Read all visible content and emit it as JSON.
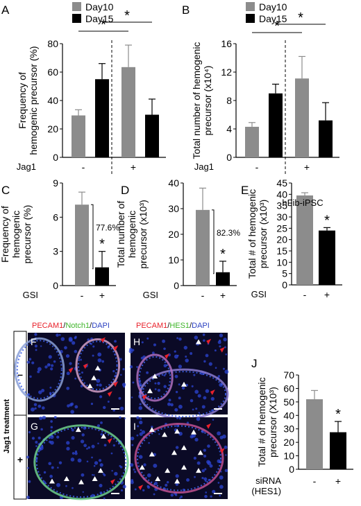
{
  "colors": {
    "gray": "#8c8c8c",
    "black": "#000000",
    "red": "#e8202a",
    "green": "#5cc93c",
    "blue": "#2e44c8",
    "bg_tissue": "#0a0a28"
  },
  "panels": {
    "A": "A",
    "B": "B",
    "C": "C",
    "D": "D",
    "E": "E",
    "F": "F",
    "G": "G",
    "H": "H",
    "I": "I",
    "J": "J"
  },
  "micro": {
    "stain_left": [
      {
        "text": "PECAM1",
        "color": "#e8202a"
      },
      {
        "text": "/",
        "color": "#000000"
      },
      {
        "text": "Notch1",
        "color": "#3fb52a"
      },
      {
        "text": "/",
        "color": "#000000"
      },
      {
        "text": "DAPI",
        "color": "#2a3fc0"
      }
    ],
    "stain_right": [
      {
        "text": "PECAM1",
        "color": "#e8202a"
      },
      {
        "text": "/",
        "color": "#000000"
      },
      {
        "text": "HES1",
        "color": "#3fb52a"
      },
      {
        "text": "/",
        "color": "#000000"
      },
      {
        "text": "DAPI",
        "color": "#2a3fc0"
      }
    ],
    "side_label": "Jag1 treatment",
    "row_minus": "–",
    "row_plus": "+"
  },
  "chart_data": [
    {
      "panel": "A",
      "type": "bar",
      "ylabel": "Frequency of\nhemogenic precursor (%)",
      "ylim": [
        0,
        80
      ],
      "yticks": [
        0,
        20,
        40,
        60,
        80
      ],
      "legend": [
        "Day10",
        "Day15"
      ],
      "series": [
        {
          "name": "Day10",
          "color": "#8c8c8c"
        },
        {
          "name": "Day15",
          "color": "#000000"
        }
      ],
      "bars": [
        {
          "value": 29.5,
          "err": 4,
          "color": "#8c8c8c"
        },
        {
          "value": 55,
          "err": 11,
          "color": "#000000"
        },
        {
          "value": 63.5,
          "err": 15.5,
          "color": "#8c8c8c"
        },
        {
          "value": 30,
          "err": 11,
          "color": "#000000"
        }
      ],
      "treatment_label": "Jag1",
      "treatment_levels": [
        "-",
        "+"
      ],
      "significance": [
        {
          "from": 0,
          "to": 2,
          "label": "*"
        },
        {
          "from": 1,
          "to": 3,
          "label": "*"
        }
      ]
    },
    {
      "panel": "B",
      "type": "bar",
      "ylabel": "Total number of hemogenic\nprecursor (x10⁴)",
      "ylim": [
        0,
        16
      ],
      "yticks": [
        0,
        4,
        8,
        12,
        16
      ],
      "legend": [
        "Day10",
        "Day15"
      ],
      "series": [
        {
          "name": "Day10",
          "color": "#8c8c8c"
        },
        {
          "name": "Day15",
          "color": "#000000"
        }
      ],
      "bars": [
        {
          "value": 4.3,
          "err": 0.6,
          "color": "#8c8c8c"
        },
        {
          "value": 9.0,
          "err": 1.3,
          "color": "#000000"
        },
        {
          "value": 11.1,
          "err": 3.1,
          "color": "#8c8c8c"
        },
        {
          "value": 5.2,
          "err": 2.5,
          "color": "#000000"
        }
      ],
      "treatment_label": "Jag1",
      "treatment_levels": [
        "-",
        "+"
      ],
      "significance": [
        {
          "from": 0,
          "to": 2,
          "label": "*"
        },
        {
          "from": 1,
          "to": 3,
          "label": "*"
        }
      ]
    },
    {
      "panel": "C",
      "type": "bar",
      "ylabel": "Frequency of\nhemogenic\nprecursor (%)",
      "ylim": [
        0,
        9
      ],
      "yticks": [
        0,
        3,
        6,
        9
      ],
      "bars": [
        {
          "value": 7.1,
          "err": 1.1,
          "color": "#8c8c8c"
        },
        {
          "value": 1.6,
          "err": 1.4,
          "color": "#000000"
        }
      ],
      "treatment_label": "GSI",
      "treatment_levels": [
        "-",
        "+"
      ],
      "reduction": "77.6%",
      "star": "*"
    },
    {
      "panel": "D",
      "type": "bar",
      "ylabel": "Total number of\nhemogenic\nprecursor (x10³)",
      "ylim": [
        0,
        40
      ],
      "yticks": [
        0,
        10,
        20,
        30,
        40
      ],
      "bars": [
        {
          "value": 29.5,
          "err": 8.5,
          "color": "#8c8c8c"
        },
        {
          "value": 5.2,
          "err": 4.3,
          "color": "#000000"
        }
      ],
      "treatment_label": "GSI",
      "treatment_levels": [
        "-",
        "+"
      ],
      "reduction": "82.3%",
      "star": "*"
    },
    {
      "panel": "E",
      "type": "bar",
      "title": "hFib-iPSC",
      "ylabel": "Total # of hemogenic\nprecursor (x10³)",
      "ylim": [
        0,
        45
      ],
      "yticks": [
        0,
        5,
        10,
        15,
        20,
        25,
        30,
        35,
        40,
        45
      ],
      "bars": [
        {
          "value": 39.5,
          "err": 1.2,
          "color": "#8c8c8c"
        },
        {
          "value": 24,
          "err": 1.3,
          "color": "#000000"
        }
      ],
      "treatment_label": "GSI",
      "treatment_levels": [
        "-",
        "+"
      ],
      "star": "*"
    },
    {
      "panel": "J",
      "type": "bar",
      "ylabel": "Total # of hemogenic\nprecursor (X10³)",
      "ylim": [
        0,
        70
      ],
      "yticks": [
        0,
        10,
        20,
        30,
        40,
        50,
        60,
        70
      ],
      "bars": [
        {
          "value": 52,
          "err": 6.5,
          "color": "#8c8c8c"
        },
        {
          "value": 27.5,
          "err": 8,
          "color": "#000000"
        }
      ],
      "treatment_label": "siRNA\n(HES1)",
      "treatment_levels": [
        "-",
        "+"
      ],
      "star": "*"
    }
  ]
}
